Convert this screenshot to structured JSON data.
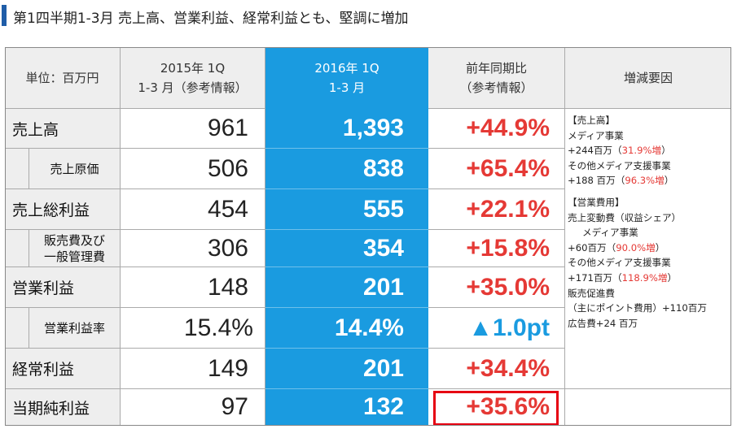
{
  "title": "第1四半期1-3月 売上高、営業利益、経常利益とも、堅調に増加",
  "header": {
    "unit": "単位：百万円",
    "col2015_line1": "2015年 1Q",
    "col2015_line2": "1-3 月（参考情報）",
    "col2016_line1": "2016年 1Q",
    "col2016_line2": "1-3 月",
    "colyoy_line1": "前年同期比",
    "colyoy_line2": "（参考情報）",
    "colreason": "増減要因"
  },
  "rows": [
    {
      "label": "売上高",
      "v2015": "961",
      "v2016": "1,393",
      "yoy": "+44.9%"
    },
    {
      "label": "売上原価",
      "v2015": "506",
      "v2016": "838",
      "yoy": "+65.4%"
    },
    {
      "label": "売上総利益",
      "v2015": "454",
      "v2016": "555",
      "yoy": "+22.1%"
    },
    {
      "label_line1": "販売費及び",
      "label_line2": "一般管理費",
      "v2015": "306",
      "v2016": "354",
      "yoy": "+15.8%"
    },
    {
      "label": "営業利益",
      "v2015": "148",
      "v2016": "201",
      "yoy": "+35.0%"
    },
    {
      "label": "営業利益率",
      "v2015": "15.4%",
      "v2016": "14.4%",
      "yoy": "▲1.0pt"
    },
    {
      "label": "経常利益",
      "v2015": "149",
      "v2016": "201",
      "yoy": "+34.4%"
    },
    {
      "label": "当期純利益",
      "v2015": "97",
      "v2016": "132",
      "yoy": "+35.6%"
    }
  ],
  "reasons": {
    "sales_head": "【売上高】",
    "media": "メディア事業",
    "media_amount": "+244百万（",
    "media_pct": "31.9%増",
    "media_close": "）",
    "other_media": "その他メディア支援事業",
    "other_amount": "+188 百万（",
    "other_pct": "96.3%増",
    "other_close": "）",
    "opex_head": "【営業費用】",
    "variable": "売上変動費（収益シェア）",
    "media2": "メディア事業",
    "media2_amount": "+60百万（",
    "media2_pct": "90.0%増",
    "media2_close": "）",
    "other_media2": "その他メディア支援事業",
    "other2_amount": "+171百万（",
    "other2_pct": "118.9%増",
    "other2_close": "）",
    "promo": "販売促進費",
    "promo_detail": "（主にポイント費用）+110百万",
    "ads": "広告費+24 百万"
  },
  "colors": {
    "accent_blue": "#1a9be0",
    "positive_red": "#e53935",
    "highlight_red": "#e60012",
    "title_bar": "#1f5da8"
  }
}
